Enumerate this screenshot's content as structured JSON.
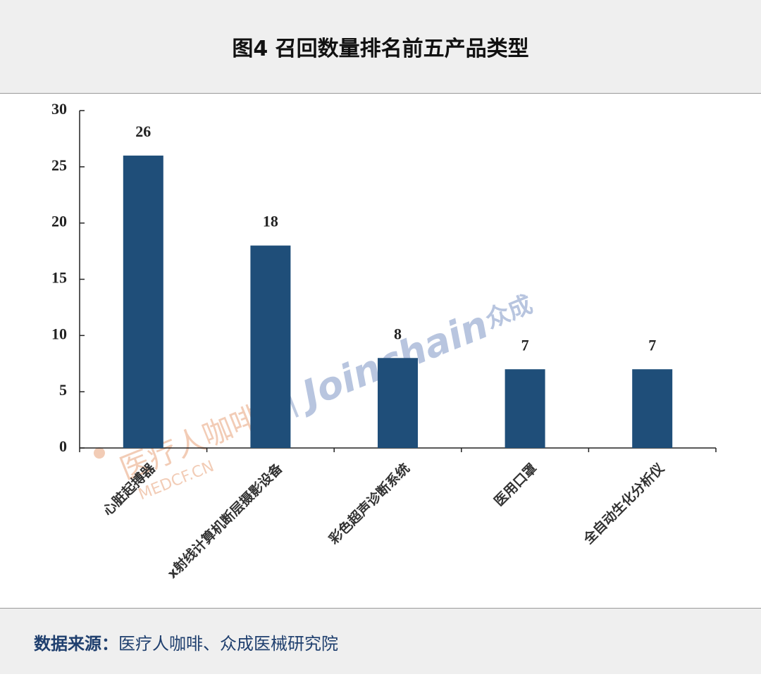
{
  "header": {
    "title": "图4 召回数量排名前五产品类型"
  },
  "chart_data": {
    "type": "bar",
    "categories": [
      "心脏起搏器",
      "x射线计算机断层摄影设备",
      "彩色超声诊断系统",
      "医用口罩",
      "全自动生化分析仪"
    ],
    "values": [
      26,
      18,
      8,
      7,
      7
    ],
    "color": "#1f4e79",
    "ylim": [
      0,
      30
    ],
    "yticks": [
      0,
      5,
      10,
      15,
      20,
      25,
      30
    ],
    "grid": false
  },
  "watermark": {
    "brand_cn": "医疗人咖啡",
    "site": "MEDCF.CN",
    "brand_en": "Joinchain",
    "brand_en_cn": "众成"
  },
  "footer": {
    "label": "数据来源：",
    "source": "医疗人咖啡、众成医械研究院"
  }
}
